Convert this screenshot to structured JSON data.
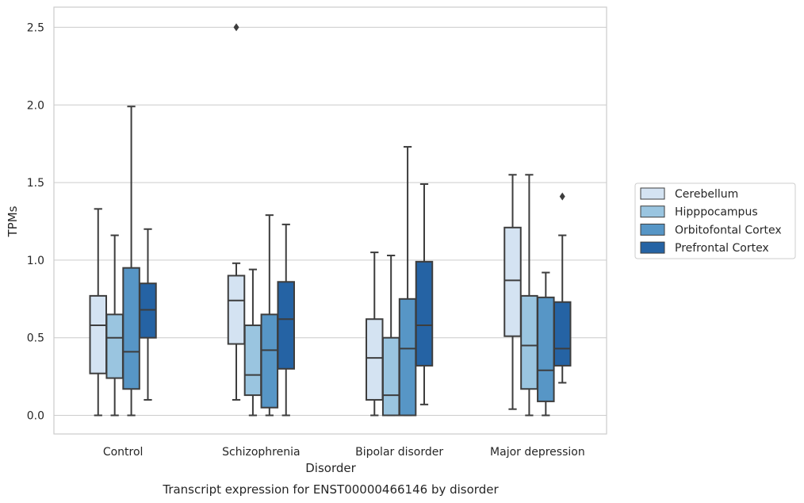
{
  "chart_data": {
    "type": "box",
    "title": "",
    "caption": "Transcript expression for ENST00000466146 by disorder",
    "xlabel": "Disorder",
    "ylabel": "TPMs",
    "ylim": [
      -0.12,
      2.63
    ],
    "yticks": [
      "0.0",
      "0.5",
      "1.0",
      "1.5",
      "2.0",
      "2.5"
    ],
    "grid": "horizontal",
    "legend_position": "right",
    "categories": [
      "Control",
      "Schizophrenia",
      "Bipolar disorder",
      "Major depression"
    ],
    "series": [
      {
        "name": "Cerebellum",
        "color": "#d4e3f2",
        "boxes": [
          {
            "min": 0.0,
            "q1": 0.27,
            "median": 0.58,
            "q3": 0.77,
            "max": 1.33,
            "outliers": []
          },
          {
            "min": 0.1,
            "q1": 0.46,
            "median": 0.74,
            "q3": 0.9,
            "max": 0.98,
            "outliers": [
              2.5
            ]
          },
          {
            "min": 0.0,
            "q1": 0.1,
            "median": 0.37,
            "q3": 0.62,
            "max": 1.05,
            "outliers": []
          },
          {
            "min": 0.04,
            "q1": 0.51,
            "median": 0.87,
            "q3": 1.21,
            "max": 1.55,
            "outliers": []
          }
        ]
      },
      {
        "name": "Hipppocampus",
        "color": "#9ac5e0",
        "boxes": [
          {
            "min": 0.0,
            "q1": 0.24,
            "median": 0.5,
            "q3": 0.65,
            "max": 1.16,
            "outliers": []
          },
          {
            "min": 0.0,
            "q1": 0.13,
            "median": 0.26,
            "q3": 0.58,
            "max": 0.94,
            "outliers": []
          },
          {
            "min": 0.0,
            "q1": 0.0,
            "median": 0.13,
            "q3": 0.5,
            "max": 1.03,
            "outliers": []
          },
          {
            "min": 0.0,
            "q1": 0.17,
            "median": 0.45,
            "q3": 0.77,
            "max": 1.55,
            "outliers": []
          }
        ]
      },
      {
        "name": "Orbitofontal Cortex",
        "color": "#5796c6",
        "boxes": [
          {
            "min": 0.0,
            "q1": 0.17,
            "median": 0.41,
            "q3": 0.95,
            "max": 1.99,
            "outliers": []
          },
          {
            "min": 0.0,
            "q1": 0.05,
            "median": 0.42,
            "q3": 0.65,
            "max": 1.29,
            "outliers": []
          },
          {
            "min": 0.0,
            "q1": 0.0,
            "median": 0.43,
            "q3": 0.75,
            "max": 1.73,
            "outliers": []
          },
          {
            "min": 0.0,
            "q1": 0.09,
            "median": 0.29,
            "q3": 0.76,
            "max": 0.92,
            "outliers": []
          }
        ]
      },
      {
        "name": "Prefrontal Cortex",
        "color": "#2563a4",
        "boxes": [
          {
            "min": 0.1,
            "q1": 0.5,
            "median": 0.68,
            "q3": 0.85,
            "max": 1.2,
            "outliers": []
          },
          {
            "min": 0.0,
            "q1": 0.3,
            "median": 0.62,
            "q3": 0.86,
            "max": 1.23,
            "outliers": []
          },
          {
            "min": 0.07,
            "q1": 0.32,
            "median": 0.58,
            "q3": 0.99,
            "max": 1.49,
            "outliers": []
          },
          {
            "min": 0.21,
            "q1": 0.32,
            "median": 0.43,
            "q3": 0.73,
            "max": 1.16,
            "outliers": [
              1.41
            ]
          }
        ]
      }
    ]
  }
}
